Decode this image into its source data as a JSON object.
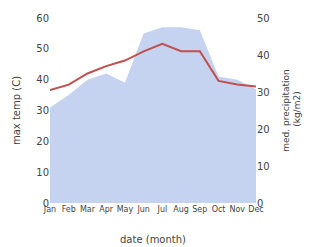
{
  "chart_data": {
    "type": "line",
    "categories": [
      "Jan",
      "Feb",
      "Mar",
      "Apr",
      "May",
      "Jun",
      "Jul",
      "Aug",
      "Sep",
      "Oct",
      "Nov",
      "Dec"
    ],
    "series": [
      {
        "type": "area",
        "color": "#c5d3f0",
        "values": [
          31,
          35,
          40,
          42,
          39,
          55,
          57,
          57,
          56,
          41,
          40,
          37
        ]
      },
      {
        "type": "line",
        "color": "#c0504d",
        "axis": "y2",
        "values": [
          30.5,
          32,
          35,
          37,
          38.5,
          41,
          43,
          41,
          41,
          33,
          32,
          31.5
        ]
      }
    ],
    "xlabel": "date (month)",
    "ylabel": "max temp (C)",
    "y2label": "med. precipitation\n (kg/m2)",
    "ylim": [
      0,
      60
    ],
    "yticks": [
      0,
      10,
      20,
      30,
      40,
      50,
      60
    ],
    "y2lim": [
      0,
      50
    ],
    "y2ticks": [
      0,
      10,
      20,
      30,
      40,
      50
    ],
    "grid": false
  }
}
